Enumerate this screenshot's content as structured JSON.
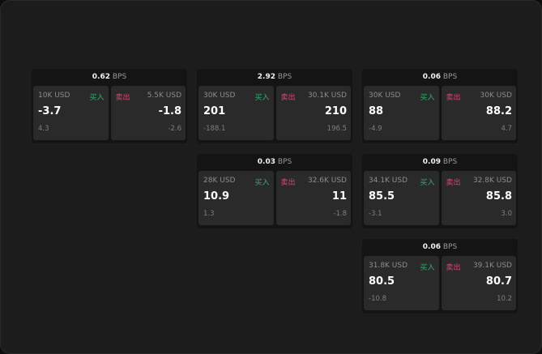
{
  "unit": "BPS",
  "buy_label": "买入",
  "sell_label": "卖出",
  "quotes": [
    {
      "spread": "0.62",
      "bid": {
        "size": "10K USD",
        "price": "-3.7",
        "change": "4.3"
      },
      "ask": {
        "size": "5.5K USD",
        "price": "-1.8",
        "change": "-2.6"
      }
    },
    {
      "spread": "2.92",
      "bid": {
        "size": "30K USD",
        "price": "201",
        "change": "-188.1"
      },
      "ask": {
        "size": "30.1K USD",
        "price": "210",
        "change": "196.5"
      }
    },
    {
      "spread": "0.06",
      "bid": {
        "size": "30K USD",
        "price": "88",
        "change": "-4.9"
      },
      "ask": {
        "size": "30K USD",
        "price": "88.2",
        "change": "4.7"
      }
    },
    {
      "spread": "0.03",
      "bid": {
        "size": "28K USD",
        "price": "10.9",
        "change": "1.3"
      },
      "ask": {
        "size": "32.6K USD",
        "price": "11",
        "change": "-1.8"
      }
    },
    {
      "spread": "0.09",
      "bid": {
        "size": "34.1K USD",
        "price": "85.5",
        "change": "-3.1"
      },
      "ask": {
        "size": "32.8K USD",
        "price": "85.8",
        "change": "3.0"
      }
    },
    {
      "spread": "0.06",
      "bid": {
        "size": "31.8K USD",
        "price": "80.5",
        "change": "-10.8"
      },
      "ask": {
        "size": "39.1K USD",
        "price": "80.7",
        "change": "10.2"
      }
    }
  ],
  "colors": {
    "buy": "#2fae6b",
    "sell": "#e0456f"
  }
}
